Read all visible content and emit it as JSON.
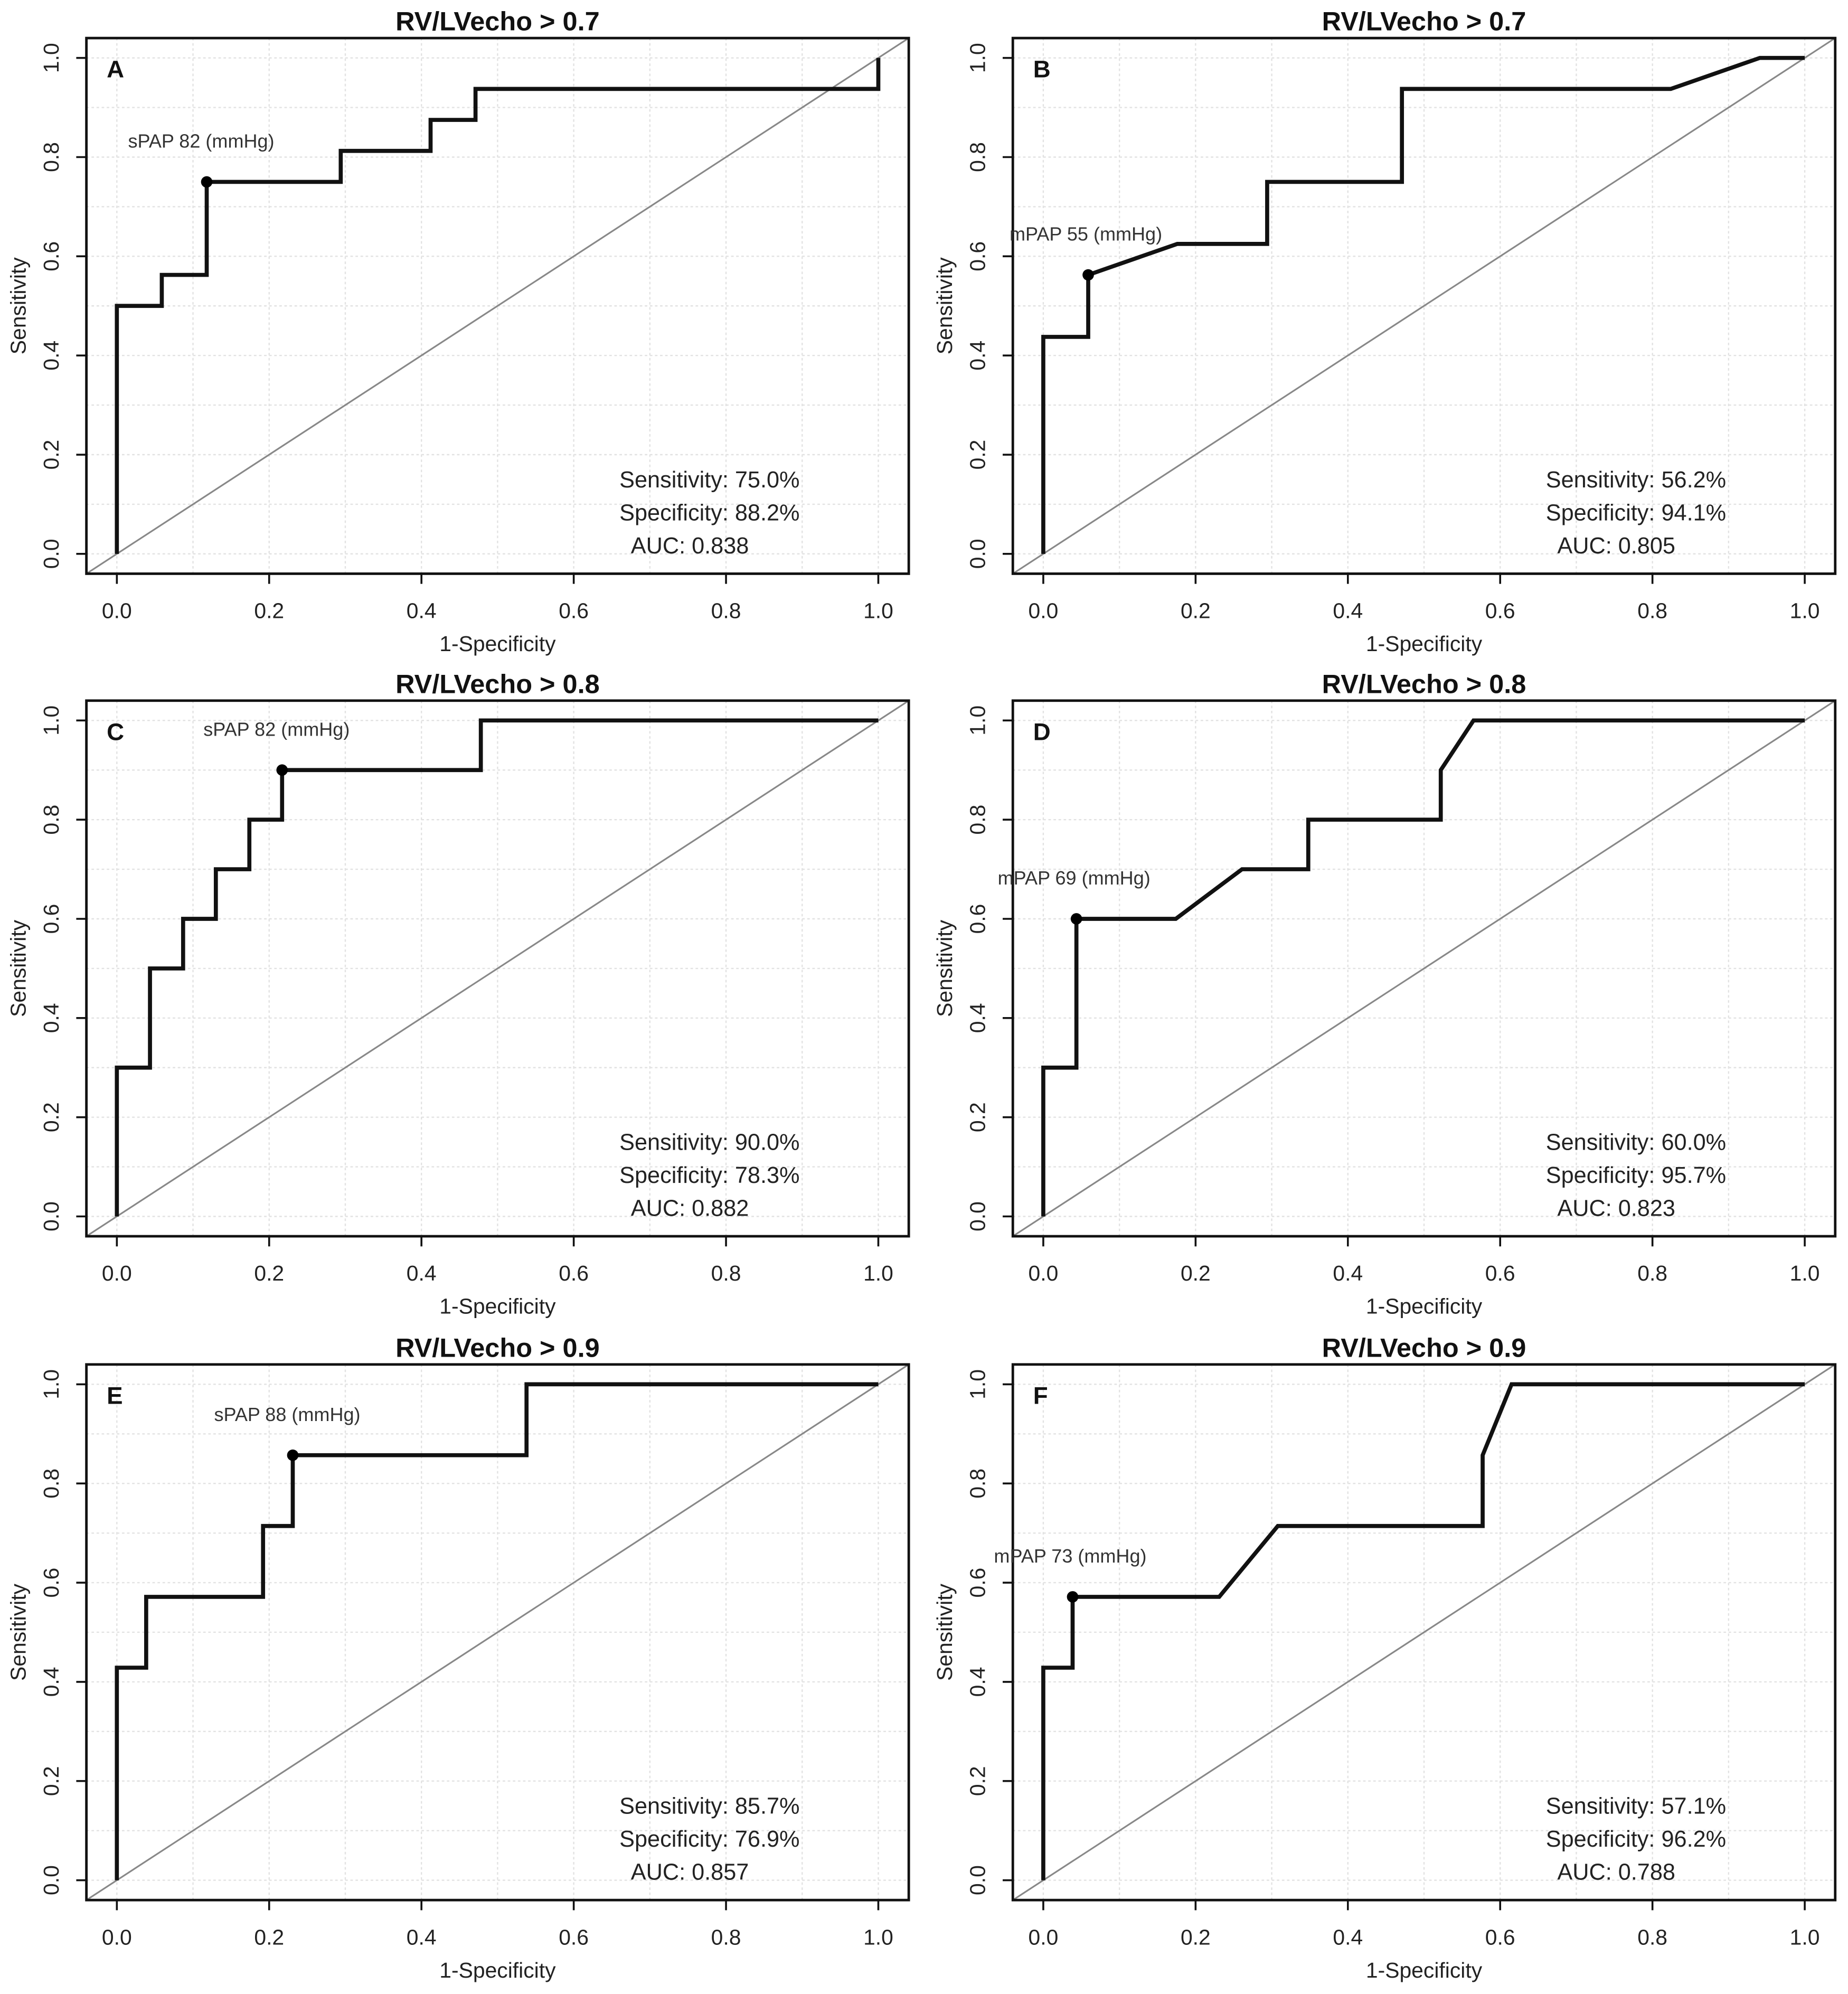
{
  "chart_data": [
    {
      "type": "line",
      "panel": "A",
      "title": "RV/LVecho > 0.7",
      "xlabel": "1-Specificity",
      "ylabel": "Sensitivity",
      "xlim": [
        0,
        1
      ],
      "ylim": [
        0,
        1
      ],
      "grid": true,
      "xticks": [
        "0.0",
        "0.2",
        "0.4",
        "0.6",
        "0.8",
        "1.0"
      ],
      "yticks": [
        "0.0",
        "0.2",
        "0.4",
        "0.6",
        "0.8",
        "1.0"
      ],
      "x": [
        0,
        0,
        0.059,
        0.059,
        0.118,
        0.118,
        0.294,
        0.294,
        0.412,
        0.412,
        0.471,
        0.471,
        1,
        1
      ],
      "y": [
        0,
        0.5,
        0.5,
        0.5625,
        0.5625,
        0.75,
        0.75,
        0.8125,
        0.8125,
        0.875,
        0.875,
        0.9375,
        0.9375,
        1
      ],
      "cutoff_point": {
        "x": 0.118,
        "y": 0.75,
        "label": "sPAP 82 (mmHg)"
      },
      "stats": [
        "Sensitivity: 75.0%",
        "Specificity: 88.2%",
        "AUC: 0.838"
      ]
    },
    {
      "type": "line",
      "panel": "B",
      "title": "RV/LVecho > 0.7",
      "xlabel": "1-Specificity",
      "ylabel": "Sensitivity",
      "xlim": [
        0,
        1
      ],
      "ylim": [
        0,
        1
      ],
      "grid": true,
      "xticks": [
        "0.0",
        "0.2",
        "0.4",
        "0.6",
        "0.8",
        "1.0"
      ],
      "yticks": [
        "0.0",
        "0.2",
        "0.4",
        "0.6",
        "0.8",
        "1.0"
      ],
      "x": [
        0,
        0,
        0.059,
        0.059,
        0.176,
        0.294,
        0.294,
        0.471,
        0.471,
        0.824,
        0.941,
        1
      ],
      "y": [
        0,
        0.4375,
        0.4375,
        0.5625,
        0.625,
        0.625,
        0.75,
        0.75,
        0.9375,
        0.9375,
        1,
        1
      ],
      "cutoff_point": {
        "x": 0.059,
        "y": 0.5625,
        "label": "mPAP 55 (mmHg)"
      },
      "stats": [
        "Sensitivity: 56.2%",
        "Specificity: 94.1%",
        "AUC: 0.805"
      ]
    },
    {
      "type": "line",
      "panel": "C",
      "title": "RV/LVecho > 0.8",
      "xlabel": "1-Specificity",
      "ylabel": "Sensitivity",
      "xlim": [
        0,
        1
      ],
      "ylim": [
        0,
        1
      ],
      "grid": true,
      "xticks": [
        "0.0",
        "0.2",
        "0.4",
        "0.6",
        "0.8",
        "1.0"
      ],
      "yticks": [
        "0.0",
        "0.2",
        "0.4",
        "0.6",
        "0.8",
        "1.0"
      ],
      "x": [
        0,
        0,
        0.0435,
        0.0435,
        0.087,
        0.087,
        0.13,
        0.13,
        0.174,
        0.174,
        0.217,
        0.217,
        0.478,
        0.478,
        1
      ],
      "y": [
        0,
        0.3,
        0.3,
        0.5,
        0.5,
        0.6,
        0.6,
        0.7,
        0.7,
        0.8,
        0.8,
        0.9,
        0.9,
        1,
        1
      ],
      "cutoff_point": {
        "x": 0.217,
        "y": 0.9,
        "label": "sPAP 82 (mmHg)"
      },
      "stats": [
        "Sensitivity: 90.0%",
        "Specificity: 78.3%",
        "AUC: 0.882"
      ]
    },
    {
      "type": "line",
      "panel": "D",
      "title": "RV/LVecho > 0.8",
      "xlabel": "1-Specificity",
      "ylabel": "Sensitivity",
      "xlim": [
        0,
        1
      ],
      "ylim": [
        0,
        1
      ],
      "grid": true,
      "xticks": [
        "0.0",
        "0.2",
        "0.4",
        "0.6",
        "0.8",
        "1.0"
      ],
      "yticks": [
        "0.0",
        "0.2",
        "0.4",
        "0.6",
        "0.8",
        "1.0"
      ],
      "x": [
        0,
        0,
        0.0435,
        0.0435,
        0.174,
        0.261,
        0.348,
        0.348,
        0.522,
        0.522,
        0.565,
        1
      ],
      "y": [
        0,
        0.3,
        0.3,
        0.6,
        0.6,
        0.7,
        0.7,
        0.8,
        0.8,
        0.9,
        1,
        1
      ],
      "cutoff_point": {
        "x": 0.0435,
        "y": 0.6,
        "label": "mPAP 69 (mmHg)"
      },
      "stats": [
        "Sensitivity: 60.0%",
        "Specificity: 95.7%",
        "AUC: 0.823"
      ]
    },
    {
      "type": "line",
      "panel": "E",
      "title": "RV/LVecho > 0.9",
      "xlabel": "1-Specificity",
      "ylabel": "Sensitivity",
      "xlim": [
        0,
        1
      ],
      "ylim": [
        0,
        1
      ],
      "grid": true,
      "xticks": [
        "0.0",
        "0.2",
        "0.4",
        "0.6",
        "0.8",
        "1.0"
      ],
      "yticks": [
        "0.0",
        "0.2",
        "0.4",
        "0.6",
        "0.8",
        "1.0"
      ],
      "x": [
        0,
        0,
        0.0385,
        0.0385,
        0.192,
        0.192,
        0.231,
        0.231,
        0.538,
        0.538,
        1
      ],
      "y": [
        0,
        0.4286,
        0.4286,
        0.5714,
        0.5714,
        0.7143,
        0.7143,
        0.857,
        0.857,
        1,
        1
      ],
      "cutoff_point": {
        "x": 0.231,
        "y": 0.857,
        "label": "sPAP 88 (mmHg)"
      },
      "stats": [
        "Sensitivity: 85.7%",
        "Specificity: 76.9%",
        "AUC: 0.857"
      ]
    },
    {
      "type": "line",
      "panel": "F",
      "title": "RV/LVecho > 0.9",
      "xlabel": "1-Specificity",
      "ylabel": "Sensitivity",
      "xlim": [
        0,
        1
      ],
      "ylim": [
        0,
        1
      ],
      "grid": true,
      "xticks": [
        "0.0",
        "0.2",
        "0.4",
        "0.6",
        "0.8",
        "1.0"
      ],
      "yticks": [
        "0.0",
        "0.2",
        "0.4",
        "0.6",
        "0.8",
        "1.0"
      ],
      "x": [
        0,
        0,
        0.0385,
        0.0385,
        0.231,
        0.308,
        0.577,
        0.577,
        0.615,
        1
      ],
      "y": [
        0,
        0.4286,
        0.4286,
        0.5714,
        0.5714,
        0.7143,
        0.7143,
        0.857,
        1,
        1
      ],
      "cutoff_point": {
        "x": 0.0385,
        "y": 0.5714,
        "label": "mPAP 73 (mmHg)"
      },
      "stats": [
        "Sensitivity: 57.1%",
        "Specificity: 96.2%",
        "AUC: 0.788"
      ]
    }
  ],
  "colors": {
    "curve": "#111111",
    "diagonal": "#888888",
    "grid": "#e2e2e2"
  }
}
